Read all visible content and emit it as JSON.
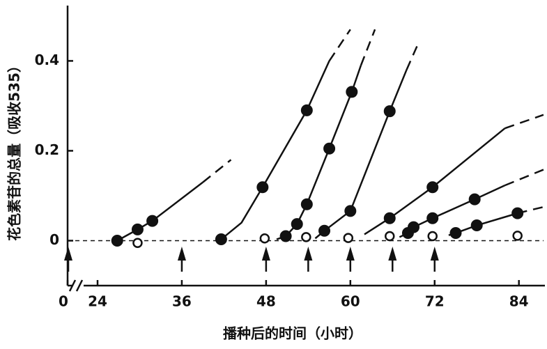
{
  "chart_data": {
    "type": "line",
    "xlabel": "播种后的时间（小时）",
    "ylabel": "花色素苷的总量（吸收535）",
    "xlim": [
      0,
      88
    ],
    "x_break": [
      0,
      24
    ],
    "xticks": [
      0,
      24,
      36,
      48,
      60,
      72,
      84
    ],
    "ylim": [
      -0.1,
      0.52
    ],
    "yticks": [
      0,
      0.2,
      0.4
    ],
    "baseline_dashed": true,
    "arrows_x": [
      0,
      36,
      48,
      54,
      60,
      66,
      72
    ],
    "series": [
      {
        "color": "#111",
        "marker": "filled",
        "x": [
          26.8,
          29.7,
          31.8
        ],
        "values": [
          0,
          0.025,
          0.044
        ],
        "line_x": [
          26.8,
          29.7,
          31.8,
          39
        ],
        "line_values": [
          0,
          0.025,
          0.044,
          0.13
        ],
        "dash_x": [
          39,
          43
        ],
        "dash_values": [
          0.13,
          0.18
        ]
      },
      {
        "color": "#111",
        "marker": "filled",
        "x": [
          41.6,
          47.5,
          53.8
        ],
        "values": [
          0.003,
          0.119,
          0.29
        ],
        "line_x": [
          41.6,
          44.5,
          47.5,
          53.8,
          57
        ],
        "line_values": [
          0.003,
          0.04,
          0.119,
          0.29,
          0.4
        ],
        "dash_x": [
          57,
          60
        ],
        "dash_values": [
          0.4,
          0.47
        ]
      },
      {
        "color": "#111",
        "marker": "filled",
        "x": [
          50.8,
          52.4,
          53.8,
          57,
          60.2
        ],
        "values": [
          0.01,
          0.037,
          0.081,
          0.205,
          0.331
        ],
        "line_x": [
          49.5,
          50.8,
          52.4,
          53.8,
          57,
          60.2,
          61.5
        ],
        "line_values": [
          0.003,
          0.01,
          0.037,
          0.081,
          0.205,
          0.331,
          0.39
        ],
        "dash_x": [
          61.5,
          63.5
        ],
        "dash_values": [
          0.39,
          0.47
        ]
      },
      {
        "color": "#111",
        "marker": "filled",
        "x": [
          56.3,
          60,
          65.6
        ],
        "values": [
          0.022,
          0.066,
          0.288
        ],
        "line_x": [
          55,
          56.3,
          60,
          65.6,
          68
        ],
        "line_values": [
          0.005,
          0.022,
          0.066,
          0.288,
          0.38
        ],
        "dash_x": [
          68,
          69.7
        ],
        "dash_values": [
          0.38,
          0.44
        ]
      },
      {
        "color": "#111",
        "marker": "filled",
        "x": [
          65.6,
          71.7
        ],
        "values": [
          0.05,
          0.119
        ],
        "line_x": [
          62,
          65.6,
          71.7,
          82
        ],
        "line_values": [
          0.014,
          0.05,
          0.119,
          0.25
        ],
        "dash_x": [
          82,
          87.5
        ],
        "dash_values": [
          0.25,
          0.28
        ]
      },
      {
        "color": "#111",
        "marker": "filled",
        "x": [
          68.2,
          69,
          71.7,
          77.7
        ],
        "values": [
          0.017,
          0.03,
          0.05,
          0.092
        ],
        "line_x": [
          67,
          68.2,
          69,
          71.7,
          77.7,
          82
        ],
        "line_values": [
          0.008,
          0.017,
          0.03,
          0.05,
          0.092,
          0.123
        ],
        "dash_x": [
          82,
          87.5
        ],
        "dash_values": [
          0.123,
          0.158
        ]
      },
      {
        "color": "#111",
        "marker": "filled",
        "x": [
          75,
          78,
          83.8
        ],
        "values": [
          0.017,
          0.034,
          0.061
        ],
        "line_x": [
          74,
          75,
          78,
          83.8
        ],
        "line_values": [
          0.012,
          0.017,
          0.034,
          0.061
        ],
        "dash_x": [
          83.8,
          87.5
        ],
        "dash_values": [
          0.061,
          0.075
        ]
      },
      {
        "color": "#111",
        "marker": "open",
        "x": [
          29.7,
          47.8,
          53.7,
          59.7,
          65.6,
          71.7,
          83.8
        ],
        "values": [
          -0.005,
          0.005,
          0.008,
          0.006,
          0.01,
          0.01,
          0.011
        ]
      }
    ]
  }
}
